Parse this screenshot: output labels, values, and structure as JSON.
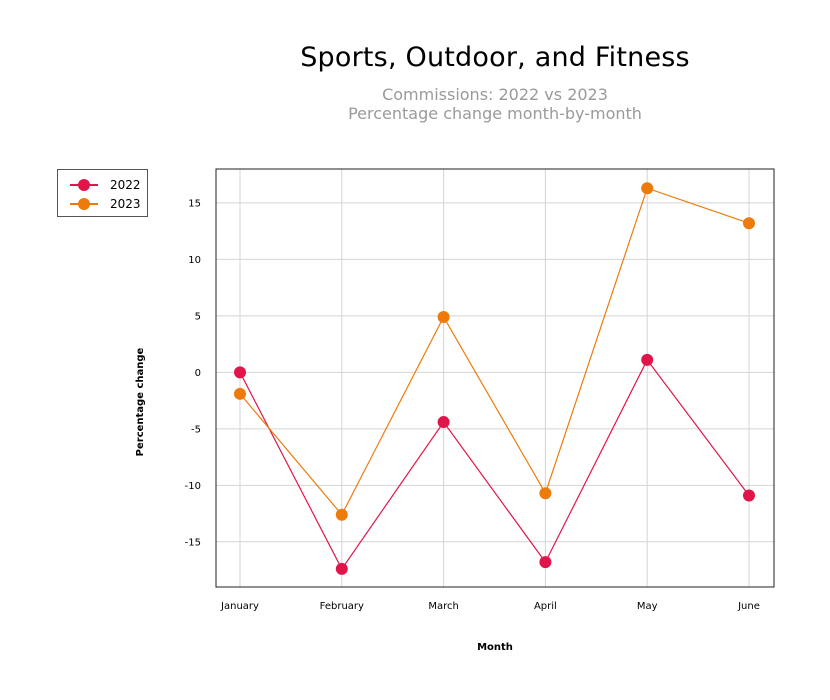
{
  "chart_data": {
    "type": "line",
    "title": "Sports, Outdoor, and Fitness",
    "subtitle_lines": [
      "Commissions: 2022 vs 2023",
      "Percentage change month-by-month"
    ],
    "xlabel": "Month",
    "ylabel": "Percentage change",
    "categories": [
      "January",
      "February",
      "March",
      "April",
      "May",
      "June"
    ],
    "ylim": [
      -19,
      18
    ],
    "yticks": [
      15,
      10,
      5,
      0,
      -5,
      -10,
      -15
    ],
    "grid": true,
    "legend_placement": "left",
    "series": [
      {
        "name": "2022",
        "color": "#e0164a",
        "values": [
          0.0,
          -17.4,
          -4.4,
          -16.8,
          1.1,
          -10.9
        ]
      },
      {
        "name": "2023",
        "color": "#ed7b0c",
        "values": [
          -1.9,
          -12.6,
          4.9,
          -10.7,
          16.3,
          13.2
        ]
      }
    ]
  }
}
